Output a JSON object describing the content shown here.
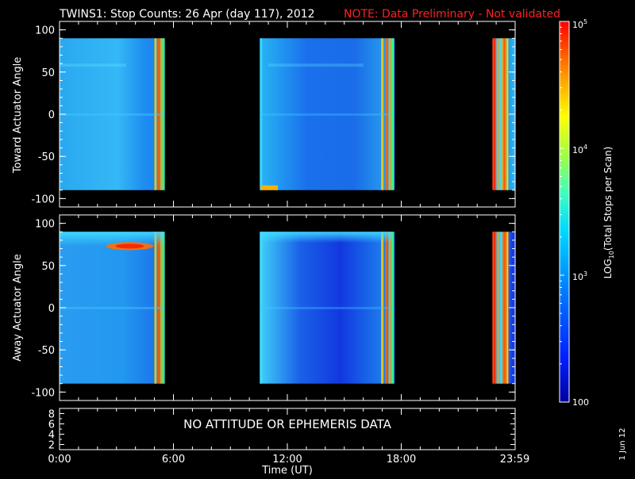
{
  "header": {
    "title": "TWINS1: Stop Counts: 26 Apr (day 117), 2012",
    "note": "NOTE: Data Preliminary - Not validated",
    "note_color": "#ff2020"
  },
  "date_stamp": "1 Jun 12",
  "chart_data": [
    {
      "type": "heatmap",
      "panel": "toward",
      "ylabel": "Toward Actuator Angle",
      "xlim_hours": [
        0,
        24
      ],
      "ylim": [
        -110,
        110
      ],
      "yticks": [
        "100",
        "50",
        "0",
        "-50",
        "-100"
      ],
      "data_angle_range": [
        -90,
        90
      ],
      "data_blocks_hours": [
        [
          0.0,
          5.55
        ],
        [
          10.55,
          17.65
        ],
        [
          22.8,
          24.0
        ]
      ],
      "dominant_colors": [
        "#1aa0f0",
        "#1a6cf0",
        "#3fc0f8"
      ]
    },
    {
      "type": "heatmap",
      "panel": "away",
      "ylabel": "Away Actuator Angle",
      "xlim_hours": [
        0,
        24
      ],
      "ylim": [
        -110,
        110
      ],
      "yticks": [
        "100",
        "50",
        "0",
        "-50",
        "-100"
      ],
      "data_angle_range": [
        -90,
        90
      ],
      "data_blocks_hours": [
        [
          0.0,
          5.55
        ],
        [
          10.55,
          17.65
        ],
        [
          22.8,
          24.0
        ]
      ],
      "dominant_colors": [
        "#1a90f0",
        "#1040e8",
        "#40c8ff"
      ]
    },
    {
      "type": "line",
      "panel": "attitude",
      "message": "NO ATTITUDE OR EPHEMERIS DATA",
      "yticks": [
        "8",
        "6",
        "4",
        "2"
      ]
    }
  ],
  "xaxis": {
    "ticks": [
      {
        "label": "0:00",
        "hour": 0
      },
      {
        "label": "6:00",
        "hour": 6
      },
      {
        "label": "12:00",
        "hour": 12
      },
      {
        "label": "18:00",
        "hour": 18
      },
      {
        "label": "23:59",
        "hour": 23.98
      }
    ],
    "label": "Time (UT)"
  },
  "colorbar": {
    "label_prefix": "LOG",
    "label_sub": "10",
    "label_suffix": "(Total Stops per Scan)",
    "scale": "log",
    "range": [
      100,
      100000
    ],
    "ticks": [
      {
        "base": "100",
        "sup": ""
      },
      {
        "base": "10",
        "sup": "3"
      },
      {
        "base": "10",
        "sup": "4"
      },
      {
        "base": "10",
        "sup": "5"
      }
    ]
  }
}
